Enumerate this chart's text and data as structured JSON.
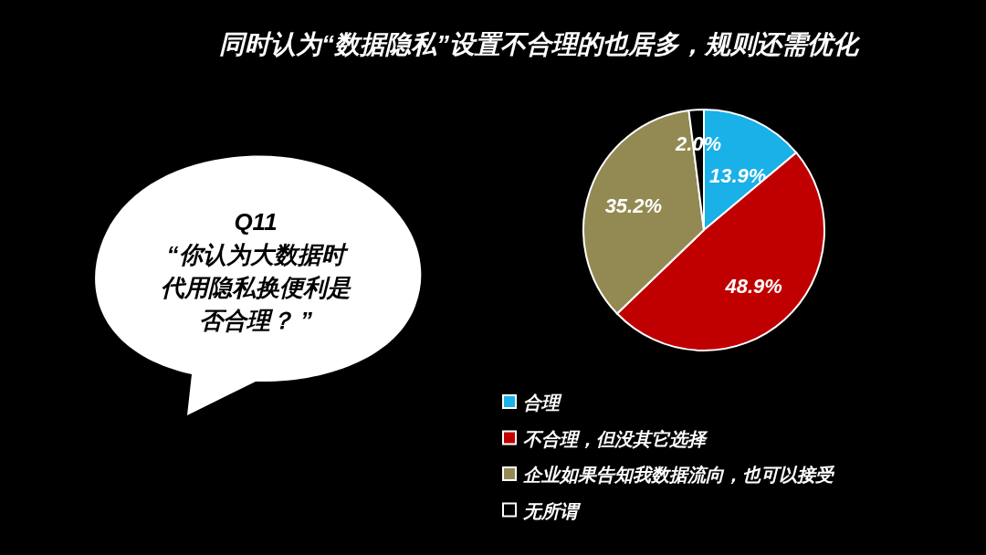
{
  "chart_data": {
    "type": "pie",
    "title": "同时认为“数据隐私”设置不合理的也居多，规则还需优化",
    "categories": [
      "合理",
      "不合理，但没其它选择",
      "企业如果告知我数据流向，也可以接受",
      "无所谓"
    ],
    "values": [
      13.9,
      48.9,
      35.2,
      2.0
    ],
    "colors": [
      "#1ab0e8",
      "#c00000",
      "#938953",
      "#000000"
    ],
    "value_labels": [
      "13.9%",
      "48.9%",
      "35.2%",
      "2.0%"
    ],
    "legend": "bottom",
    "annotations": [
      "Q11\n“你认为大数据时代用隐私换便利是否合理？ ”"
    ]
  }
}
